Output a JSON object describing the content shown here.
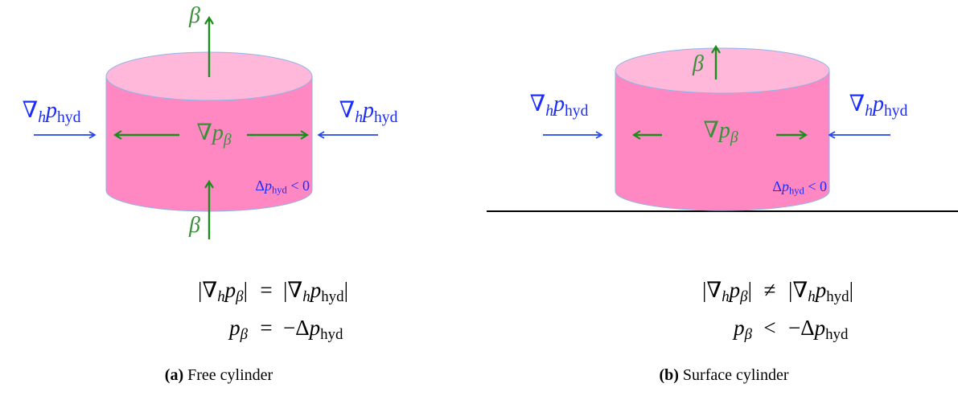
{
  "panels": [
    {
      "beta_top": [
        {
          "text": "β",
          "italic": true
        }
      ],
      "beta_bottom": [
        {
          "text": "β",
          "italic": true
        }
      ],
      "grad_left": [
        {
          "text": "∇"
        },
        {
          "text": "h",
          "italic": true,
          "sub": true
        },
        {
          "text": "p",
          "italic": true
        },
        {
          "text": "hyd",
          "sub": true
        }
      ],
      "grad_right": [
        {
          "text": "∇"
        },
        {
          "text": "h",
          "italic": true,
          "sub": true
        },
        {
          "text": "p",
          "italic": true
        },
        {
          "text": "hyd",
          "sub": true
        }
      ],
      "grad_beta": [
        {
          "text": "∇"
        },
        {
          "text": "p",
          "italic": true
        },
        {
          "text": "β",
          "italic": true,
          "sub": true
        }
      ],
      "delta": [
        {
          "text": "Δ"
        },
        {
          "text": "p",
          "italic": true
        },
        {
          "text": "hyd",
          "sub": true
        },
        {
          "text": " < 0"
        }
      ],
      "equations": [
        {
          "left": [
            {
              "text": "|∇"
            },
            {
              "text": "h",
              "italic": true,
              "sub": true
            },
            {
              "text": "p",
              "italic": true
            },
            {
              "text": "β",
              "italic": true,
              "sub": true
            },
            {
              "text": "|"
            }
          ],
          "relation": "=",
          "right": [
            {
              "text": "|∇"
            },
            {
              "text": "h",
              "italic": true,
              "sub": true
            },
            {
              "text": "p",
              "italic": true
            },
            {
              "text": "hyd",
              "sub": true
            },
            {
              "text": "|"
            }
          ]
        },
        {
          "left": [
            {
              "text": "p",
              "italic": true
            },
            {
              "text": "β",
              "italic": true,
              "sub": true
            }
          ],
          "relation": "=",
          "right": [
            {
              "text": "−Δ"
            },
            {
              "text": "p",
              "italic": true
            },
            {
              "text": "hyd",
              "sub": true
            }
          ]
        }
      ],
      "caption": {
        "tag": "(a)",
        "text": "Free cylinder"
      }
    },
    {
      "beta_top": [
        {
          "text": "β",
          "italic": true
        }
      ],
      "grad_left": [
        {
          "text": "∇"
        },
        {
          "text": "h",
          "italic": true,
          "sub": true
        },
        {
          "text": "p",
          "italic": true
        },
        {
          "text": "hyd",
          "sub": true
        }
      ],
      "grad_right": [
        {
          "text": "∇"
        },
        {
          "text": "h",
          "italic": true,
          "sub": true
        },
        {
          "text": "p",
          "italic": true
        },
        {
          "text": "hyd",
          "sub": true
        }
      ],
      "grad_beta": [
        {
          "text": "∇"
        },
        {
          "text": "p",
          "italic": true
        },
        {
          "text": "β",
          "italic": true,
          "sub": true
        }
      ],
      "delta": [
        {
          "text": "Δ"
        },
        {
          "text": "p",
          "italic": true
        },
        {
          "text": "hyd",
          "sub": true
        },
        {
          "text": " < 0"
        }
      ],
      "equations": [
        {
          "left": [
            {
              "text": "|∇"
            },
            {
              "text": "h",
              "italic": true,
              "sub": true
            },
            {
              "text": "p",
              "italic": true
            },
            {
              "text": "β",
              "italic": true,
              "sub": true
            },
            {
              "text": "|"
            }
          ],
          "relation": "≠",
          "right": [
            {
              "text": "|∇"
            },
            {
              "text": "h",
              "italic": true,
              "sub": true
            },
            {
              "text": "p",
              "italic": true
            },
            {
              "text": "hyd",
              "sub": true
            },
            {
              "text": "|"
            }
          ]
        },
        {
          "left": [
            {
              "text": "p",
              "italic": true
            },
            {
              "text": "β",
              "italic": true,
              "sub": true
            }
          ],
          "relation": "<",
          "right": [
            {
              "text": "−Δ"
            },
            {
              "text": "p",
              "italic": true
            },
            {
              "text": "hyd",
              "sub": true
            }
          ]
        }
      ],
      "caption": {
        "tag": "(b)",
        "text": "Surface cylinder"
      }
    }
  ]
}
